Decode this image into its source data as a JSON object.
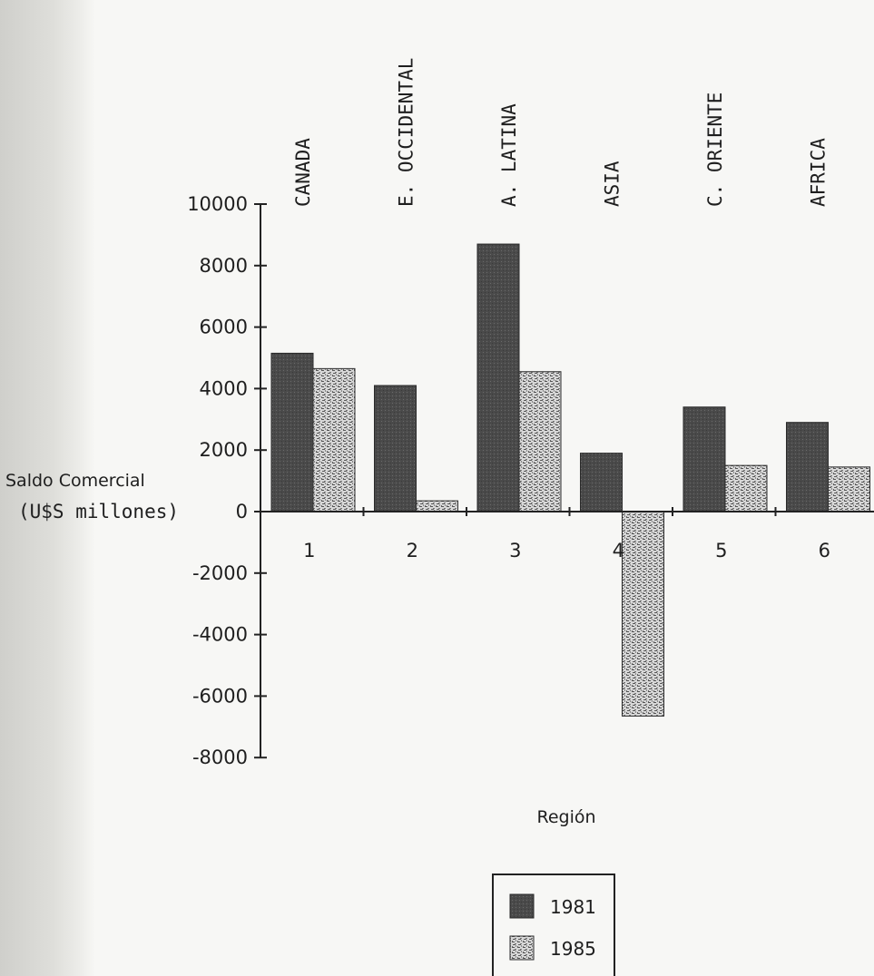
{
  "chart_data": {
    "type": "bar",
    "categories": [
      "1",
      "2",
      "3",
      "4",
      "5",
      "6"
    ],
    "region_names": [
      "CANADA",
      "E. OCCIDENTAL",
      "A. LATINA",
      "ASIA",
      "C. ORIENTE",
      "AFRICA"
    ],
    "series": [
      {
        "name": "1981",
        "values": [
          5150,
          4100,
          8700,
          1900,
          3400,
          2900
        ]
      },
      {
        "name": "1985",
        "values": [
          4650,
          350,
          4550,
          -6650,
          1500,
          1450
        ]
      }
    ],
    "ylabel_line1": "Saldo Comercial",
    "ylabel_line2": "(U$S millones)",
    "xlabel": "Región",
    "ylim": [
      -8000,
      10000
    ],
    "yticks": [
      10000,
      8000,
      6000,
      4000,
      2000,
      0,
      -2000,
      -4000,
      -6000,
      -8000
    ],
    "ytick_labels": [
      "10000",
      "8000",
      "6000",
      "4000",
      "2000",
      "0",
      "-2000",
      "-4000",
      "-6000",
      "-8000"
    ],
    "grid": false,
    "legend_position": "bottom-center",
    "colors": {
      "1981": "#4a4a4a",
      "1985": "#bdbdbd"
    }
  }
}
